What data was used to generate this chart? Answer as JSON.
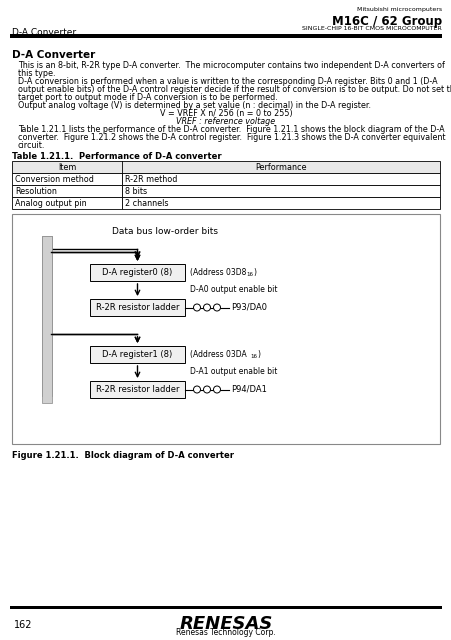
{
  "title_company": "Mitsubishi microcomputers",
  "title_product": "M16C / 62 Group",
  "title_sub": "SINGLE-CHIP 16-BIT CMOS MICROCOMPUTER",
  "header_left": "D-A Converter",
  "section_title": "D-A Converter",
  "para1_lines": [
    "This is an 8-bit, R-2R type D-A converter.  The microcomputer contains two independent D-A converters of",
    "this type."
  ],
  "para2_lines": [
    "D-A conversion is performed when a value is written to the corresponding D-A register. Bits 0 and 1 (D-A",
    "output enable bits) of the D-A control register decide if the result of conversion is to be output. Do not set the",
    "target port to output mode if D-A conversion is to be performed."
  ],
  "para3_line": "Output analog voltage (V) is determined by a set value (n : decimal) in the D-A register.",
  "formula": "V = VREF X n/ 256 (n = 0 to 255)",
  "vref_note": "VREF : reference voltage",
  "para4_lines": [
    "Table 1.21.1 lists the performance of the D-A converter.  Figure 1.21.1 shows the block diagram of the D-A",
    "converter.  Figure 1.21.2 shows the D-A control register.  Figure 1.21.3 shows the D-A converter equivalent",
    "circuit."
  ],
  "table_title": "Table 1.21.1.  Performance of D-A converter",
  "table_headers": [
    "Item",
    "Performance"
  ],
  "table_rows": [
    [
      "Conversion method",
      "R-2R method"
    ],
    [
      "Resolution",
      "8 bits"
    ],
    [
      "Analog output pin",
      "2 channels"
    ]
  ],
  "fig_label": "Data bus low-order bits",
  "reg0_label": "D-A register0 (8)",
  "reg0_addr": "(Address 03D816)",
  "reg0_addr_sub": "16",
  "da0_enable": "D-A0 output enable bit",
  "ladder0_label": "R-2R resistor ladder",
  "pin0_label": "P93/DA0",
  "reg1_label": "D-A register1 (8)",
  "reg1_addr": "(Address 03DA16)",
  "reg1_addr_sub": "16",
  "da1_enable": "D-A1 output enable bit",
  "ladder1_label": "R-2R resistor ladder",
  "pin1_label": "P94/DA1",
  "figure_title": "Figure 1.21.1.  Block diagram of D-A converter",
  "page_number": "162",
  "footer_logo": "RENESAS",
  "footer_sub": "Renesas Technology Corp.",
  "bg_color": "#ffffff",
  "text_color": "#000000"
}
